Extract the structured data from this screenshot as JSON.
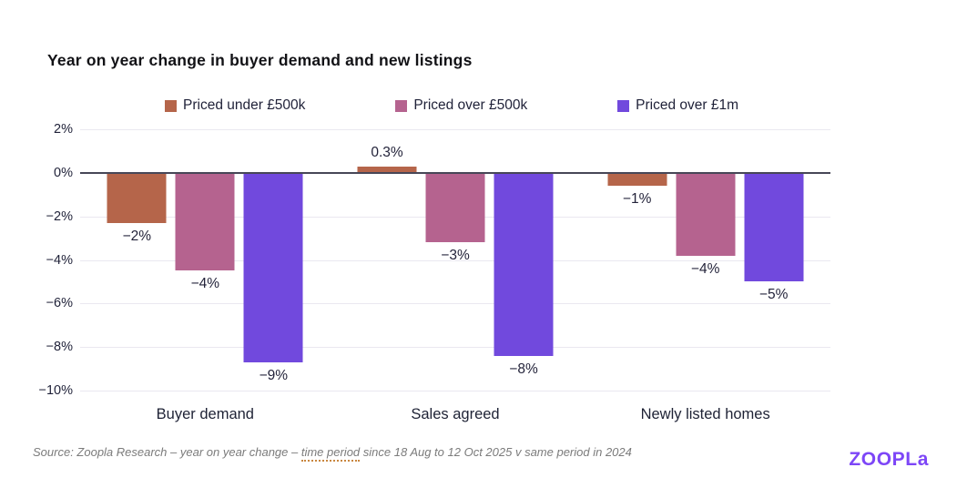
{
  "title": "Year on year change in buyer demand and new listings",
  "chart_data": {
    "type": "bar",
    "title": "Year on year change in buyer demand and new listings",
    "categories": [
      "Buyer demand",
      "Sales agreed",
      "Newly listed homes"
    ],
    "series": [
      {
        "name": "Priced under £500k",
        "color": "#b5654a",
        "values": [
          -2.3,
          0.3,
          -0.6
        ],
        "labels": [
          "−2%",
          "0.3%",
          "−1%"
        ]
      },
      {
        "name": "Priced over £500k",
        "color": "#b5638f",
        "values": [
          -4.5,
          -3.2,
          -3.8
        ],
        "labels": [
          "−4%",
          "−3%",
          "−4%"
        ]
      },
      {
        "name": "Priced over £1m",
        "color": "#7149dd",
        "values": [
          -8.7,
          -8.4,
          -5.0
        ],
        "labels": [
          "−9%",
          "−8%",
          "−5%"
        ]
      }
    ],
    "ylim": [
      -10,
      2
    ],
    "ytick_values": [
      2,
      0,
      -2,
      -4,
      -6,
      -8,
      -10
    ],
    "yticks": [
      "2%",
      "0%",
      "−2%",
      "−4%",
      "−6%",
      "−8%",
      "−10%"
    ],
    "xlabel": "",
    "ylabel": "",
    "grid": true,
    "legend_position": "top",
    "zero_line_color": "#474757",
    "gridline_color": "#eae8f0"
  },
  "source": {
    "prefix": "Source:  Zoopla Research – year on year change – ",
    "underlined": "time period",
    "suffix": " since 18 Aug to 12 Oct 2025 v same period in 2024"
  },
  "logo": {
    "text": "ZOOPLa",
    "color": "#7d46f7"
  }
}
